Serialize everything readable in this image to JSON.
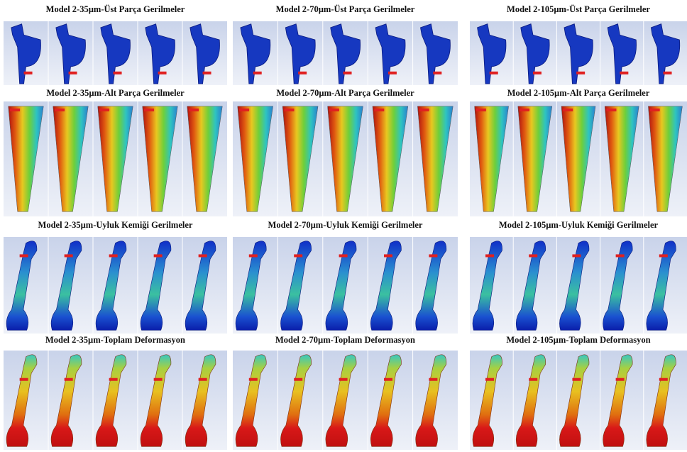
{
  "panels": [
    {
      "title": "Model 2-35µm-Üst Parça Gerilmeler"
    },
    {
      "title": "Model 2-70µm-Üst Parça Gerilmeler"
    },
    {
      "title": "Model 2-105µm-Üst Parça Gerilmeler"
    },
    {
      "title": "Model 2-35µm-Alt Parça Gerilmeler"
    },
    {
      "title": "Model 2-70µm-Alt Parça Gerilmeler"
    },
    {
      "title": "Model 2-105µm-Alt Parça Gerilmeler"
    },
    {
      "title": "Model 2-35µm-Uyluk Kemiği Gerilmeler"
    },
    {
      "title": "Model 2-70µm-Uyluk Kemiği Gerilmeler"
    },
    {
      "title": "Model 2-105µm-Uyluk Kemiği Gerilmeler"
    },
    {
      "title": "Model 2-35µm-Toplam Deformasyon"
    },
    {
      "title": "Model 2-70µm-Toplam Deformasyon"
    },
    {
      "title": "Model 2-105µm-Toplam Deformasyon"
    }
  ]
}
